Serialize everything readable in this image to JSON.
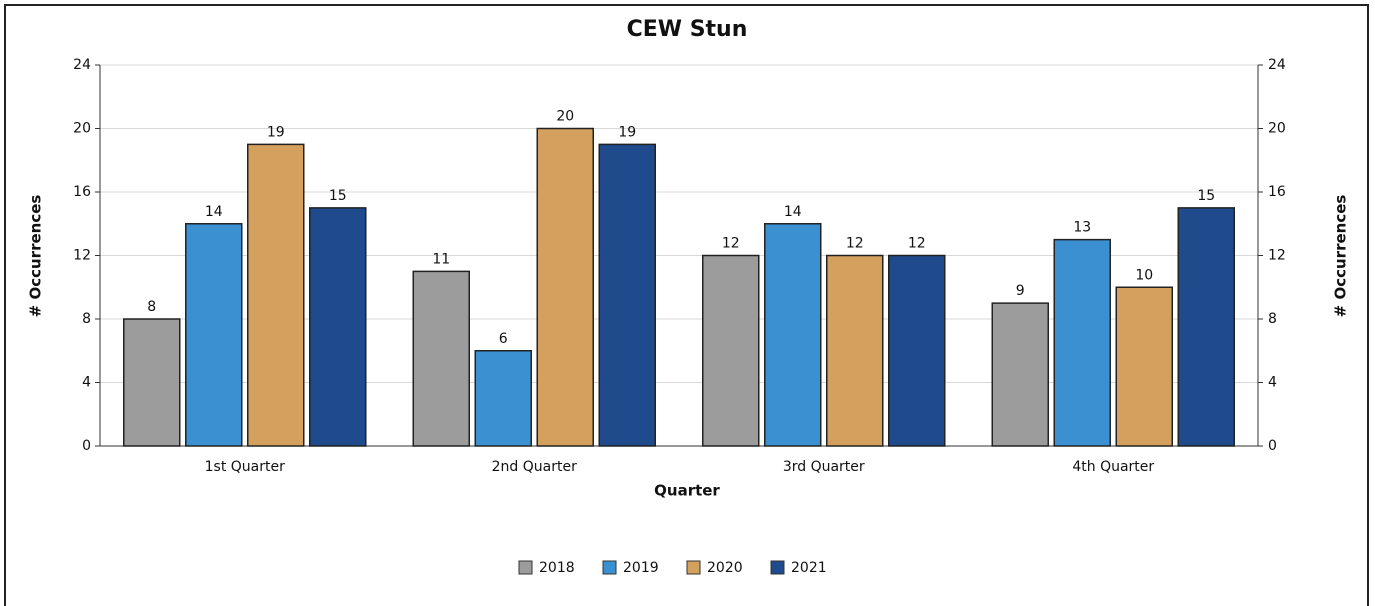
{
  "chart_data": {
    "type": "bar",
    "title": "CEW Stun",
    "xlabel": "Quarter",
    "ylabel": "# Occurrences",
    "y2label": "# Occurrences",
    "categories": [
      "1st Quarter",
      "2nd Quarter",
      "3rd Quarter",
      "4th Quarter"
    ],
    "series": [
      {
        "name": "2018",
        "color": "#9c9c9c",
        "values": [
          8,
          11,
          12,
          9
        ]
      },
      {
        "name": "2019",
        "color": "#3b90d2",
        "values": [
          14,
          6,
          14,
          13
        ]
      },
      {
        "name": "2020",
        "color": "#d4a05e",
        "values": [
          19,
          20,
          12,
          10
        ]
      },
      {
        "name": "2021",
        "color": "#1f4b8c",
        "values": [
          15,
          19,
          12,
          15
        ]
      }
    ],
    "ylim": [
      0,
      24
    ],
    "yticks": [
      0,
      4,
      8,
      12,
      16,
      20,
      24
    ],
    "y2lim": [
      0,
      24
    ],
    "y2ticks": [
      0,
      4,
      8,
      12,
      16,
      20,
      24
    ],
    "grid": true,
    "legend": "bottom"
  }
}
